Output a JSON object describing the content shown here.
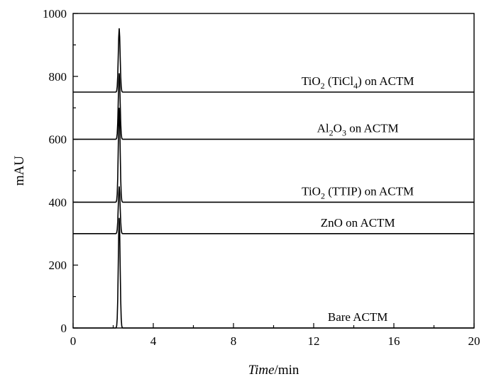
{
  "chart_data": {
    "type": "line",
    "xlabel_italic": "Time",
    "xlabel_rest": "/min",
    "ylabel": "mAU",
    "xlim": [
      0,
      20
    ],
    "ylim": [
      0,
      1000
    ],
    "x_ticks": [
      "0",
      "4",
      "8",
      "12",
      "16",
      "20"
    ],
    "x_tick_values": [
      0,
      4,
      8,
      12,
      16,
      20
    ],
    "y_ticks": [
      "0",
      "200",
      "400",
      "600",
      "800",
      "1000"
    ],
    "y_tick_values": [
      0,
      200,
      400,
      600,
      800,
      1000
    ],
    "grid": false,
    "legend": "none",
    "series": [
      {
        "label_parts": [
          [
            "Bare ACTM",
            ""
          ]
        ],
        "baseline": 0,
        "peak_x": 2.3,
        "peak_height": 350
      },
      {
        "label_parts": [
          [
            "ZnO on ACTM",
            ""
          ]
        ],
        "baseline": 300,
        "peak_x": 2.3,
        "peak_height": 150
      },
      {
        "label_parts": [
          [
            "TiO",
            ""
          ],
          [
            "2",
            "sub"
          ],
          [
            " (TTIP) on ACTM",
            ""
          ]
        ],
        "baseline": 400,
        "peak_x": 2.3,
        "peak_height": 300
      },
      {
        "label_parts": [
          [
            "Al",
            ""
          ],
          [
            "2",
            "sub"
          ],
          [
            "O",
            ""
          ],
          [
            "3",
            "sub"
          ],
          [
            " on ACTM",
            ""
          ]
        ],
        "baseline": 600,
        "peak_x": 2.3,
        "peak_height": 210
      },
      {
        "label_parts": [
          [
            "TiO",
            ""
          ],
          [
            "2",
            "sub"
          ],
          [
            " (TiCl",
            ""
          ],
          [
            "4",
            "sub"
          ],
          [
            ") on ACTM",
            ""
          ]
        ],
        "baseline": 750,
        "peak_x": 2.3,
        "peak_height": 203
      }
    ]
  }
}
